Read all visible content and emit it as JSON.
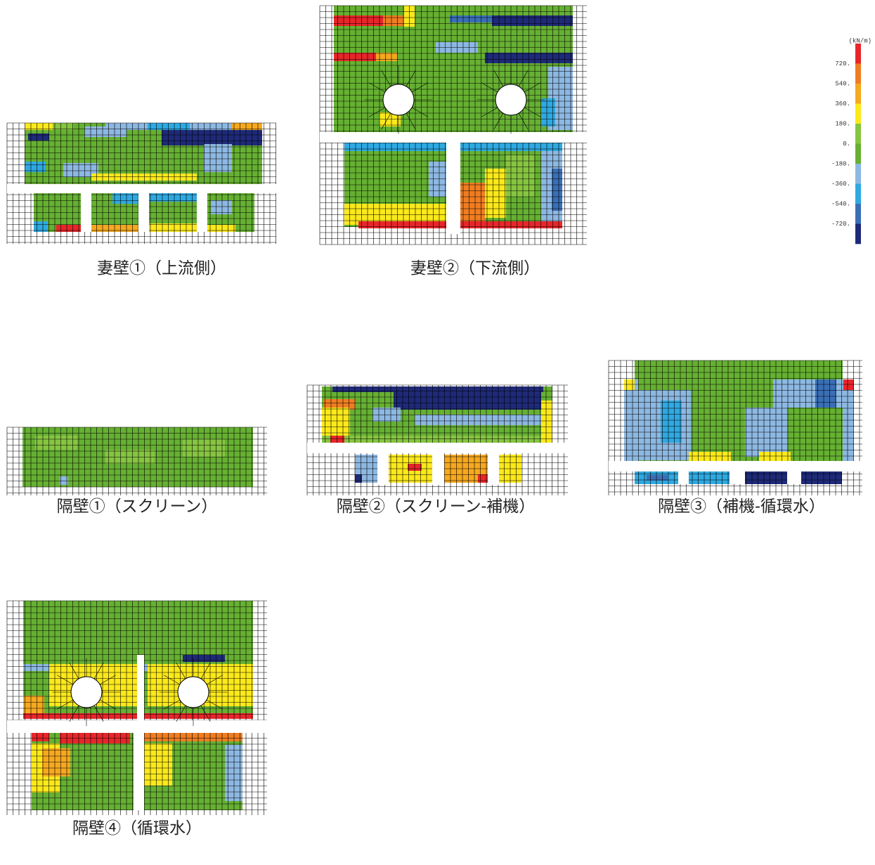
{
  "captions": [
    "妻壁①（上流側）",
    "妻壁②（下流側）",
    "隔壁①（スクリーン）",
    "隔壁②（スクリーン-補機）",
    "隔壁③（補機-循環水）",
    "隔壁④（循環水）"
  ],
  "legend": {
    "unit": "(kN/m)",
    "labels": [
      "720.",
      "540.",
      "360.",
      "180.",
      "0.",
      "-180.",
      "-360.",
      "-540.",
      "-720."
    ],
    "colors": [
      "#e8262a",
      "#ef7d22",
      "#f6a81f",
      "#fbe91b",
      "#86c540",
      "#66b032",
      "#8db8e2",
      "#2fa9e1",
      "#3a6fb6",
      "#1e2a78"
    ]
  }
}
